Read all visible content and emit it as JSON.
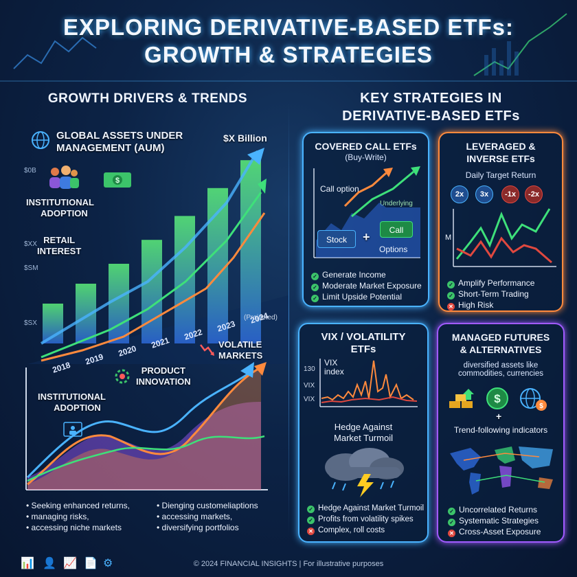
{
  "title_line1": "EXPLORING DERIVATIVE-BASED ETFs:",
  "title_line2": "GROWTH & STRATEGIES",
  "left": {
    "heading": "GROWTH DRIVERS & TRENDS",
    "aum_line1": "GLOBAL ASSETS UNDER",
    "aum_line2": "MANAGEMENT (AUM)",
    "billion": "$X Billion",
    "institutional_top_1": "INSTITUTIONAL",
    "institutional_top_2": "ADOPTION",
    "retail_1": "RETAIL",
    "retail_2": "INTEREST",
    "product_1": "PRODUCT",
    "product_2": "INNOVATION",
    "volatile_1": "VOLATILE",
    "volatile_2": "MARKETS",
    "institutional_bottom_1": "INSTITUTIONAL",
    "institutional_bottom_2": "ADOPTION",
    "axis_labels": [
      "$0B",
      "$XX",
      "$SM",
      "$SX"
    ],
    "years": [
      "2018",
      "2019",
      "2020",
      "2021",
      "2022",
      "2023",
      "2024"
    ],
    "projected": "(Projected)",
    "bar_levels": [
      0.2,
      0.3,
      0.4,
      0.52,
      0.64,
      0.78,
      0.92
    ],
    "bullets_left": [
      "Seeking enhanced returns,",
      "managing risks,",
      "accessing niche markets"
    ],
    "bullets_right": [
      "Dienging customeliaptions",
      "accessing markets,",
      "diversifying portfolios"
    ]
  },
  "right": {
    "heading_1": "KEY STRATEGIES IN",
    "heading_2": "DERIVATIVE-BASED ETFs",
    "covered": {
      "title_1": "COVERED CALL ETFs",
      "title_2": "(Buy-Write)",
      "call_option": "Call option",
      "underlying": "Underlying",
      "stock": "Stock",
      "plus": "+",
      "call": "Call",
      "options": "Options",
      "bullets": [
        "Generate Income",
        "Moderate Market Exposure",
        "Limit Upside Potential"
      ]
    },
    "leveraged": {
      "title_1": "LEVERAGED &",
      "title_2": "INVERSE ETFs",
      "subtitle": "Daily Target Return",
      "multipliers": [
        "2x",
        "3x",
        "-1x",
        "-2x"
      ],
      "axis": "M",
      "bullets": [
        "Amplify Performance",
        "Short-Term Trading",
        "High Risk"
      ]
    },
    "vix": {
      "title_1": "VIX / VOLATILITY",
      "title_2": "ETFs",
      "index_1": "VIX",
      "index_2": "index",
      "axis": [
        "130",
        "VIX",
        "VIX"
      ],
      "hedge_1": "Hedge Against",
      "hedge_2": "Market Turmoil",
      "bullets": [
        "Hedge Against Market Turmoil",
        "Profits from volatility spikes",
        "Complex, roll costs"
      ]
    },
    "managed": {
      "title_1": "MANAGED FUTURES",
      "title_2": "& ALTERNATIVES",
      "sub_1": "diversified assets like",
      "sub_2": "commodities, currencies",
      "plus": "+",
      "trend": "Trend-following indicators",
      "bullets": [
        "Uncorrelated Returns",
        "Systematic Strategies",
        "Cross-Asset Exposure"
      ]
    }
  },
  "footer": "© 2024 FINANCIAL INSIGHTS | For illustrative purposes",
  "colors": {
    "accent": "#4ab3ff",
    "green": "#3cc46a",
    "orange": "#ff8a3d",
    "purple": "#a15bff",
    "red": "#e0483f"
  }
}
